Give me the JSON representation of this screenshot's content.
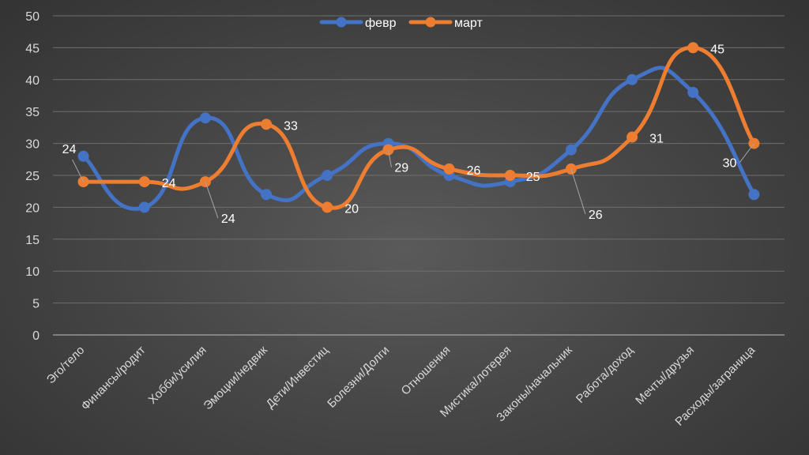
{
  "chart_data": {
    "type": "line",
    "title": "",
    "xlabel": "",
    "ylabel": "",
    "ylim": [
      0,
      50
    ],
    "yticks": [
      0,
      5,
      10,
      15,
      20,
      25,
      30,
      35,
      40,
      45,
      50
    ],
    "grid": true,
    "legend_position": "top-center",
    "categories": [
      "Эго/тело",
      "Финансы/родит",
      "Хобби/усилия",
      "Эмоции/недвик",
      "Дети/Инвестиц",
      "Болезни/Долги",
      "Отношения",
      "Мистика/лотерея",
      "Законы/начальник",
      "Работа/доход",
      "Мечты/друзья",
      "Расходы/заграница"
    ],
    "series": [
      {
        "name": "февр",
        "color": "#4472c4",
        "values": [
          28,
          20,
          34,
          22,
          25,
          30,
          25,
          24,
          29,
          40,
          38,
          22
        ]
      },
      {
        "name": "март",
        "color": "#ed7d31",
        "values": [
          24,
          24,
          24,
          33,
          20,
          29,
          26,
          25,
          26,
          31,
          45,
          30
        ]
      }
    ],
    "data_labels": [
      {
        "series": "март",
        "index": 0,
        "text": "24"
      },
      {
        "series": "март",
        "index": 1,
        "text": "24"
      },
      {
        "series": "март",
        "index": 2,
        "text": "24"
      },
      {
        "series": "март",
        "index": 3,
        "text": "33"
      },
      {
        "series": "март",
        "index": 4,
        "text": "20"
      },
      {
        "series": "март",
        "index": 5,
        "text": "29"
      },
      {
        "series": "март",
        "index": 6,
        "text": "26"
      },
      {
        "series": "март",
        "index": 7,
        "text": "25"
      },
      {
        "series": "март",
        "index": 8,
        "text": "26"
      },
      {
        "series": "март",
        "index": 9,
        "text": "31"
      },
      {
        "series": "март",
        "index": 10,
        "text": "45"
      },
      {
        "series": "март",
        "index": 11,
        "text": "30"
      }
    ]
  }
}
